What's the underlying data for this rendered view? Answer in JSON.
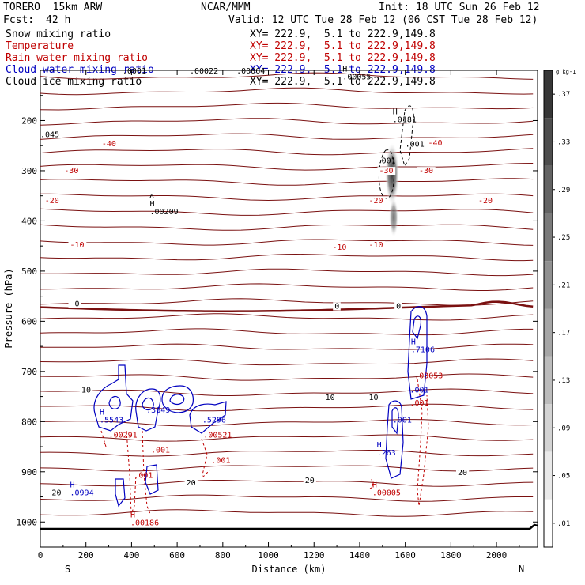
{
  "header": {
    "model": "TORERO  15km ARW",
    "center": "NCAR/MMM",
    "init": "Init: 18 UTC Sun 26 Feb 12",
    "fcst_label": "Fcst:",
    "fcst_value": "42 h",
    "valid": "Valid: 12 UTC Tue 28 Feb 12 (06 CST Tue 28 Feb 12)"
  },
  "legend": [
    {
      "name": "Snow mixing ratio",
      "xy": "XY= 222.9,  5.1 to 222.9,149.8",
      "color": "#000000"
    },
    {
      "name": "Temperature",
      "xy": "XY= 222.9,  5.1 to 222.9,149.8",
      "color": "#c00000"
    },
    {
      "name": "Rain water mixing ratio",
      "xy": "XY= 222.9,  5.1 to 222.9,149.8",
      "color": "#c00000"
    },
    {
      "name": "Cloud water mixing ratio",
      "xy": "XY= 222.9,  5.1 to 222.9,149.8",
      "color": "#0000c0"
    },
    {
      "name": "Cloud ice mixing ratio",
      "xy": "XY= 222.9,  5.1 to 222.9,149.8",
      "color": "#000000"
    }
  ],
  "chart_data": {
    "type": "contour",
    "xlabel": "Distance (km)",
    "ylabel": "Pressure (hPa)",
    "xlim": [
      0,
      2180
    ],
    "ylim": [
      1050,
      100
    ],
    "x_ticks": [
      "0",
      "200",
      "400",
      "600",
      "800",
      "1000",
      "1200",
      "1400",
      "1600",
      "1800",
      "2000"
    ],
    "x_tick_values": [
      0,
      200,
      400,
      600,
      800,
      1000,
      1200,
      1400,
      1600,
      1800,
      2000
    ],
    "y_ticks": [
      "200",
      "300",
      "400",
      "500",
      "600",
      "700",
      "800",
      "900",
      "1000"
    ],
    "y_tick_values": [
      200,
      300,
      400,
      500,
      600,
      700,
      800,
      900,
      1000
    ],
    "left_end": "S",
    "right_end": "N",
    "colorbar": {
      "unit": "g kg-1",
      "labels": [
        ".01",
        ".05",
        ".09",
        ".13",
        ".17",
        ".21",
        ".25",
        ".29",
        ".33",
        ".37"
      ],
      "values": [
        0.01,
        0.05,
        0.09,
        0.13,
        0.17,
        0.21,
        0.25,
        0.29,
        0.33,
        0.37
      ]
    },
    "temperature_labels": [
      {
        "text": "-40",
        "x": 270,
        "p": 251,
        "color": "#c00000"
      },
      {
        "text": "-40",
        "x": 1700,
        "p": 250,
        "color": "#c00000"
      },
      {
        "text": "-30",
        "x": 105,
        "p": 305,
        "color": "#c00000"
      },
      {
        "text": "-30",
        "x": 1485,
        "p": 305,
        "color": "#c00000"
      },
      {
        "text": "-30",
        "x": 1660,
        "p": 305,
        "color": "#c00000"
      },
      {
        "text": "-20",
        "x": 20,
        "p": 365,
        "color": "#c00000"
      },
      {
        "text": "-20",
        "x": 1440,
        "p": 365,
        "color": "#c00000"
      },
      {
        "text": "-20",
        "x": 1920,
        "p": 365,
        "color": "#c00000"
      },
      {
        "text": "-10",
        "x": 130,
        "p": 453,
        "color": "#c00000"
      },
      {
        "text": "-10",
        "x": 1280,
        "p": 458,
        "color": "#c00000"
      },
      {
        "text": "-10",
        "x": 1440,
        "p": 453,
        "color": "#c00000"
      },
      {
        "text": "-0",
        "x": 130,
        "p": 570,
        "color": "#000000"
      },
      {
        "text": "0",
        "x": 1290,
        "p": 575,
        "color": "#000000"
      },
      {
        "text": "0",
        "x": 1560,
        "p": 575,
        "color": "#000000"
      },
      {
        "text": "10",
        "x": 180,
        "p": 742,
        "color": "#000000"
      },
      {
        "text": "10",
        "x": 1250,
        "p": 757,
        "color": "#000000"
      },
      {
        "text": "10",
        "x": 1440,
        "p": 757,
        "color": "#000000"
      },
      {
        "text": "20",
        "x": 640,
        "p": 927,
        "color": "#000000"
      },
      {
        "text": "20",
        "x": 1160,
        "p": 922,
        "color": "#000000"
      },
      {
        "text": "20",
        "x": 1830,
        "p": 907,
        "color": "#000000"
      },
      {
        "text": "20",
        "x": 50,
        "p": 947,
        "color": "#000000"
      }
    ],
    "max_labels": [
      {
        "h": "H",
        "text": ".00209",
        "x": 480,
        "p": 387,
        "color": "#000000"
      },
      {
        "h": "H",
        "text": ".0181",
        "x": 1545,
        "p": 203,
        "color": "#000000"
      },
      {
        "h": "",
        "text": ".001",
        "x": 1475,
        "p": 285,
        "color": "#000000"
      },
      {
        "h": "",
        "text": ".001",
        "x": 1600,
        "p": 252,
        "color": "#000000"
      },
      {
        "h": "H",
        "text": ".00055",
        "x": 1325,
        "p": 118,
        "color": "#000000"
      },
      {
        "h": "",
        "text": ".0001",
        "x": 360,
        "p": 106,
        "color": "#000000"
      },
      {
        "h": "",
        "text": ".00022",
        "x": 655,
        "p": 106,
        "color": "#000000"
      },
      {
        "h": "",
        "text": ".00064",
        "x": 860,
        "p": 106,
        "color": "#000000"
      },
      {
        "h": "",
        "text": ".045",
        "x": 0,
        "p": 233,
        "color": "#000000"
      },
      {
        "h": "H",
        "text": ".5543",
        "x": 260,
        "p": 802,
        "color": "#0000c0"
      },
      {
        "h": "",
        "text": ".3649",
        "x": 465,
        "p": 782,
        "color": "#0000c0"
      },
      {
        "h": "",
        "text": ".5296",
        "x": 710,
        "p": 802,
        "color": "#0000c0"
      },
      {
        "h": "H",
        "text": ".0994",
        "x": 130,
        "p": 947,
        "color": "#0000c0"
      },
      {
        "h": "H",
        "text": ".7106",
        "x": 1625,
        "p": 662,
        "color": "#0000c0"
      },
      {
        "h": "",
        "text": ".001",
        "x": 1620,
        "p": 742,
        "color": "#0000c0"
      },
      {
        "h": "H",
        "text": ".263",
        "x": 1475,
        "p": 867,
        "color": "#0000c0"
      },
      {
        "h": "",
        "text": ".001",
        "x": 1545,
        "p": 802,
        "color": "#0000c0"
      },
      {
        "h": "",
        "text": ".00291",
        "x": 300,
        "p": 832,
        "color": "#c00000"
      },
      {
        "h": "",
        "text": ".00521",
        "x": 715,
        "p": 832,
        "color": "#c00000"
      },
      {
        "h": "",
        "text": ".001",
        "x": 485,
        "p": 862,
        "color": "#c00000"
      },
      {
        "h": "",
        "text": ".001",
        "x": 750,
        "p": 882,
        "color": "#c00000"
      },
      {
        "h": "",
        "text": ".001",
        "x": 410,
        "p": 912,
        "color": "#c00000"
      },
      {
        "h": "",
        "text": ".03053",
        "x": 1640,
        "p": 714,
        "color": "#c00000"
      },
      {
        "h": "",
        "text": ".001",
        "x": 1620,
        "p": 768,
        "color": "#c00000"
      },
      {
        "h": "H",
        "text": ".00005",
        "x": 1455,
        "p": 947,
        "color": "#c00000"
      },
      {
        "h": "H",
        "text": ".00186",
        "x": 395,
        "p": 1007,
        "color": "#c00000"
      }
    ]
  }
}
